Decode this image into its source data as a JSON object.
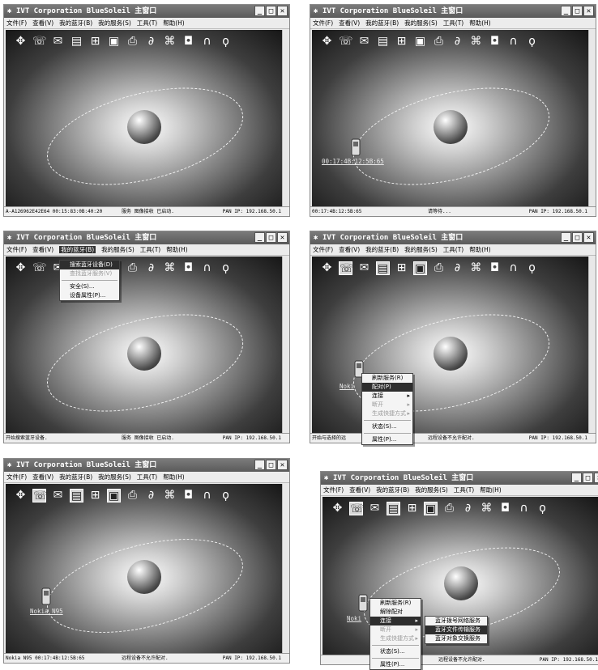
{
  "title": "IVT Corporation BlueSoleil 主窗口",
  "menu": [
    "文件(F)",
    "查看(V)",
    "我的蓝牙(B)",
    "我的服务(S)",
    "工具(T)",
    "帮助(H)"
  ],
  "toolbar_icons": [
    "dial-up-icon",
    "headset-icon",
    "fax-icon",
    "file-transfer-icon",
    "network-icon",
    "object-push-icon",
    "printer-icon",
    "mouse-icon",
    "serial-port-icon",
    "camera-icon",
    "audio-icon",
    "sync-icon"
  ],
  "statusbar": {
    "w1": {
      "left": "A-A126962E42E64 00:15:83:0B:40:20",
      "mid": "服务 图像接收 已启动.",
      "right": "PAN IP: 192.168.50.1"
    },
    "w2": {
      "left": "00:17:4B:12:5B:65",
      "mid": "请等待...",
      "right": "PAN IP: 192.168.50.1"
    },
    "w3": {
      "left": "开始搜索蓝牙设备.",
      "mid": "服务 图像接收 已启动.",
      "right": "PAN IP: 192.168.50.1"
    },
    "w4": {
      "left": "开始与选择的远",
      "mid": "远程设备不允许配对.",
      "right": "PAN IP: 192.168.50.1"
    },
    "w5": {
      "left": "Nokia N95  00:17:4B:12:5B:65",
      "mid": "远程设备不允许配对.",
      "right": "PAN IP: 192.168.50.1"
    },
    "w6": {
      "left": "",
      "mid": "远程设备不允许配对.",
      "right": "PAN IP: 192.168.50.1"
    }
  },
  "device_labels": {
    "w2": "00:17:4B:12:5B:65",
    "w4": "Noki",
    "w5": "Nokia N95",
    "w6": "Noki"
  },
  "bluetooth_menu": [
    "搜索蓝牙设备(D)",
    "查找蓝牙服务(V)",
    "安全(S)...",
    "设备属性(P)..."
  ],
  "device_menu_w4": [
    "刷新服务(R)",
    "配对(P)",
    "连接",
    "断开",
    "生成快捷方式",
    "状态(S)...",
    "属性(P)..."
  ],
  "device_menu_w6": [
    "刷新服务(R)",
    "解除配对",
    "连接",
    "断开",
    "生成快捷方式",
    "状态(S)...",
    "属性(P)..."
  ],
  "connect_submenu": [
    "蓝牙拨号网络服务",
    "蓝牙文件传输服务",
    "蓝牙对象交换服务"
  ]
}
